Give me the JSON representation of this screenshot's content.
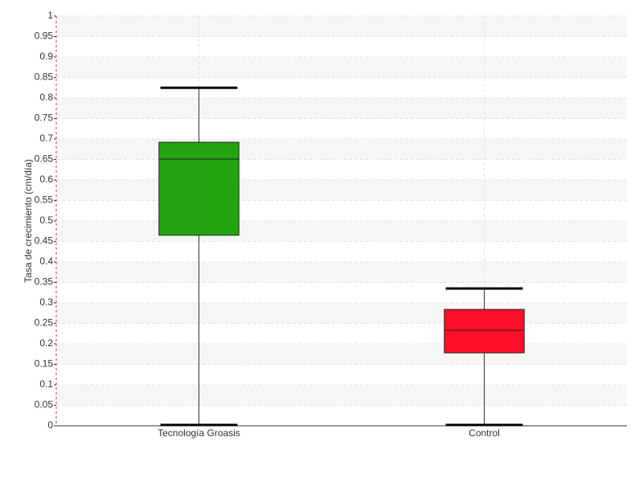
{
  "chart_data": {
    "type": "box",
    "y_label": "Tasa de crecimiento (cm/día)",
    "categories": [
      "Tecnología Groasis",
      "Control"
    ],
    "boxes": [
      {
        "min": 0,
        "q1": 0.465,
        "median": 0.651,
        "q3": 0.692,
        "max": 0.825,
        "color": "#22a50f"
      },
      {
        "min": 0,
        "q1": 0.178,
        "median": 0.233,
        "q3": 0.284,
        "max": 0.335,
        "color": "#ff0f2a"
      }
    ],
    "ylim": [
      0,
      1
    ],
    "yticks": [
      0,
      0.05,
      0.1,
      0.15,
      0.2,
      0.25,
      0.3,
      0.35,
      0.4,
      0.45,
      0.5,
      0.55,
      0.6,
      0.65,
      0.7,
      0.75,
      0.8,
      0.85,
      0.9,
      0.95,
      1
    ],
    "grid": true
  }
}
